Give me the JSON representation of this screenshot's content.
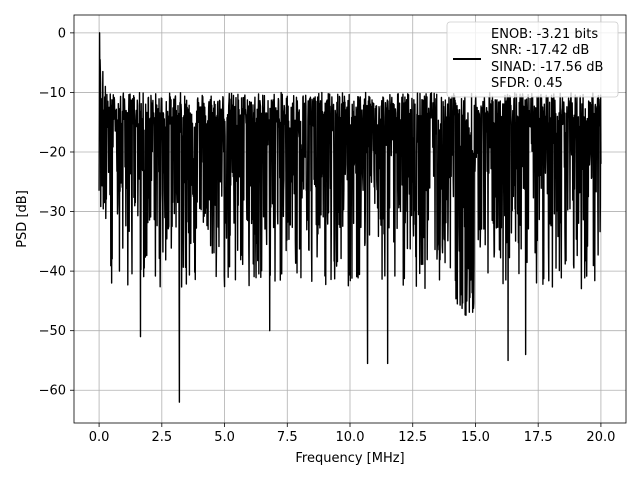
{
  "chart_data": {
    "type": "line",
    "xlabel": "Frequency [MHz]",
    "ylabel": "PSD [dB]",
    "xlim": [
      -1.0,
      21.0
    ],
    "ylim": [
      -65.5,
      3.0
    ],
    "xticks": [
      0.0,
      2.5,
      5.0,
      7.5,
      10.0,
      12.5,
      15.0,
      17.5,
      20.0
    ],
    "xtick_labels": [
      "0.0",
      "2.5",
      "5.0",
      "7.5",
      "10.0",
      "12.5",
      "15.0",
      "17.5",
      "20.0"
    ],
    "yticks": [
      0,
      -10,
      -20,
      -30,
      -40,
      -50,
      -60
    ],
    "ytick_labels": [
      "0",
      "−10",
      "−20",
      "−30",
      "−40",
      "−50",
      "−60"
    ],
    "grid": true,
    "legend_position": "top-right",
    "series": [
      {
        "name": "ENOB: -3.21 bits",
        "legend_lines": [
          "ENOB: -3.21 bits",
          "SNR: -17.42 dB",
          "SINAD: -17.56 dB",
          "SFDR: 0.45"
        ],
        "color": "#000000",
        "x": [
          0.0,
          0.02,
          0.04,
          0.06,
          0.08,
          0.1,
          0.15,
          0.2,
          0.25,
          0.3,
          0.35,
          0.4,
          0.5,
          1.65,
          3.2,
          6.8,
          10.7,
          11.5,
          16.3,
          17.0,
          20.0
        ],
        "y": [
          -26.5,
          0.0,
          -4.5,
          -8.5,
          -11.0,
          -18.0,
          -6.5,
          -14.0,
          -9.0,
          -20.0,
          -11.5,
          -12.5,
          -42.0,
          -51.0,
          -62.0,
          -50.0,
          -55.5,
          -55.5,
          -55.0,
          -54.0,
          -22.0
        ],
        "noise_floor_band": [
          -33.0,
          -13.0
        ]
      }
    ]
  }
}
